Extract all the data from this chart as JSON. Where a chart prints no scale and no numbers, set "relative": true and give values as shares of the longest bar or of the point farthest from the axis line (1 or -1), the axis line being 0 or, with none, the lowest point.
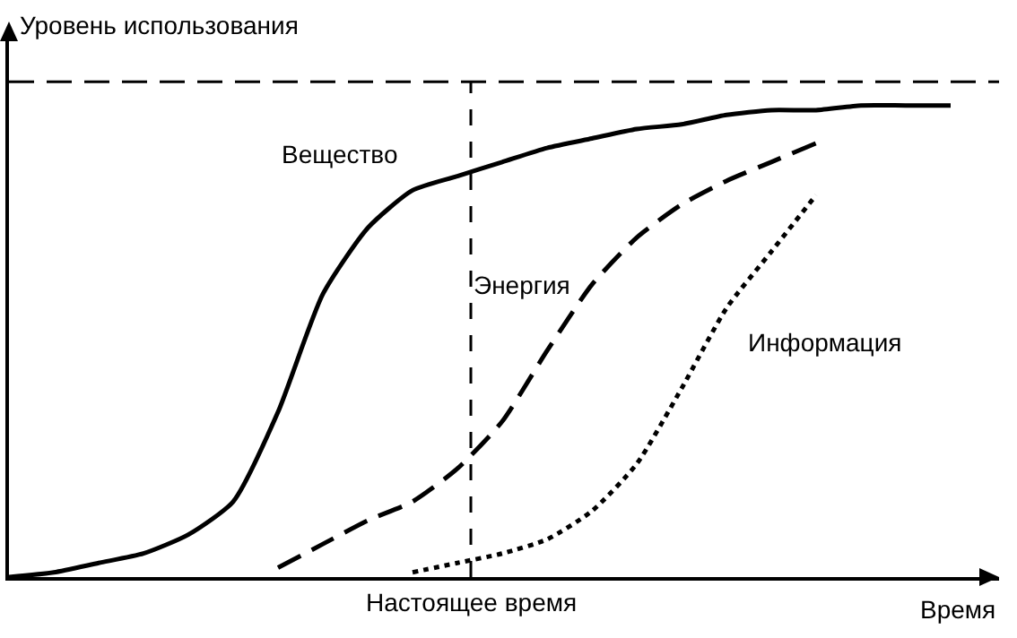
{
  "chart_data": {
    "type": "line",
    "relative": true,
    "xlabel": "Время",
    "ylabel": "Уровень использования",
    "legend": false,
    "grid": false,
    "categories": [
      null,
      null,
      null,
      null,
      null,
      null,
      null,
      null,
      null,
      null,
      null,
      null,
      null,
      null,
      null,
      null,
      null,
      null,
      null,
      null,
      null,
      null
    ],
    "series": [
      {
        "name": "Вещество",
        "color": "#000000",
        "line_style": "solid",
        "values": [
          0,
          0.01,
          0.03,
          0.05,
          0.09,
          0.16,
          0.35,
          0.6,
          0.74,
          0.82,
          0.85,
          0.88,
          0.91,
          0.93,
          0.95,
          0.96,
          0.98,
          0.99,
          0.99,
          1,
          1,
          1
        ]
      },
      {
        "name": "Энергия",
        "color": "#000000",
        "line_style": "dashed",
        "values": [
          null,
          null,
          null,
          null,
          null,
          null,
          0.02,
          0.07,
          0.12,
          0.16,
          0.23,
          0.33,
          0.48,
          0.62,
          0.72,
          0.79,
          0.84,
          0.88,
          0.92,
          null,
          null,
          null
        ]
      },
      {
        "name": "Информация",
        "color": "#000000",
        "line_style": "dotted",
        "values": [
          null,
          null,
          null,
          null,
          null,
          null,
          null,
          null,
          null,
          0.01,
          0.03,
          0.05,
          0.08,
          0.14,
          0.24,
          0.4,
          0.57,
          0.69,
          0.81,
          null,
          null,
          null
        ]
      }
    ],
    "annotations": [
      "Настоящее время"
    ],
    "ref_lines": [
      {
        "axis": "y",
        "value": 1.05,
        "line_style": "dashed",
        "color": "#000000"
      }
    ]
  }
}
